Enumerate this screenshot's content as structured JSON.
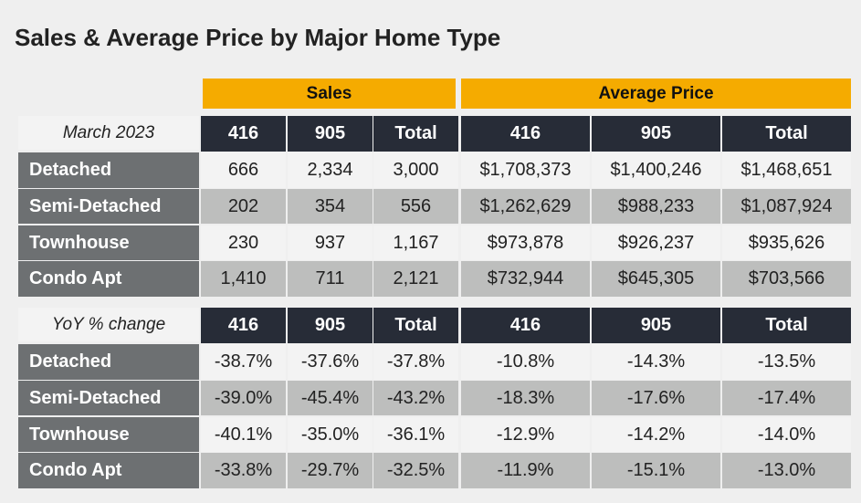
{
  "title": "Sales & Average Price by Major Home Type",
  "groups": [
    "Sales",
    "Average Price"
  ],
  "columns": [
    "416",
    "905",
    "Total",
    "416",
    "905",
    "Total"
  ],
  "sections": [
    {
      "period": "March 2023",
      "rows": [
        {
          "label": "Detached",
          "values": [
            "666",
            "2,334",
            "3,000",
            "$1,708,373",
            "$1,400,246",
            "$1,468,651"
          ]
        },
        {
          "label": "Semi-Detached",
          "values": [
            "202",
            "354",
            "556",
            "$1,262,629",
            "$988,233",
            "$1,087,924"
          ]
        },
        {
          "label": "Townhouse",
          "values": [
            "230",
            "937",
            "1,167",
            "$973,878",
            "$926,237",
            "$935,626"
          ]
        },
        {
          "label": "Condo Apt",
          "values": [
            "1,410",
            "711",
            "2,121",
            "$732,944",
            "$645,305",
            "$703,566"
          ]
        }
      ]
    },
    {
      "period": "YoY % change",
      "rows": [
        {
          "label": "Detached",
          "values": [
            "-38.7%",
            "-37.6%",
            "-37.8%",
            "-10.8%",
            "-14.3%",
            "-13.5%"
          ]
        },
        {
          "label": "Semi-Detached",
          "values": [
            "-39.0%",
            "-45.4%",
            "-43.2%",
            "-18.3%",
            "-17.6%",
            "-17.4%"
          ]
        },
        {
          "label": "Townhouse",
          "values": [
            "-40.1%",
            "-35.0%",
            "-36.1%",
            "-12.9%",
            "-14.2%",
            "-14.0%"
          ]
        },
        {
          "label": "Condo Apt",
          "values": [
            "-33.8%",
            "-29.7%",
            "-32.5%",
            "-11.9%",
            "-15.1%",
            "-13.0%"
          ]
        }
      ]
    }
  ]
}
